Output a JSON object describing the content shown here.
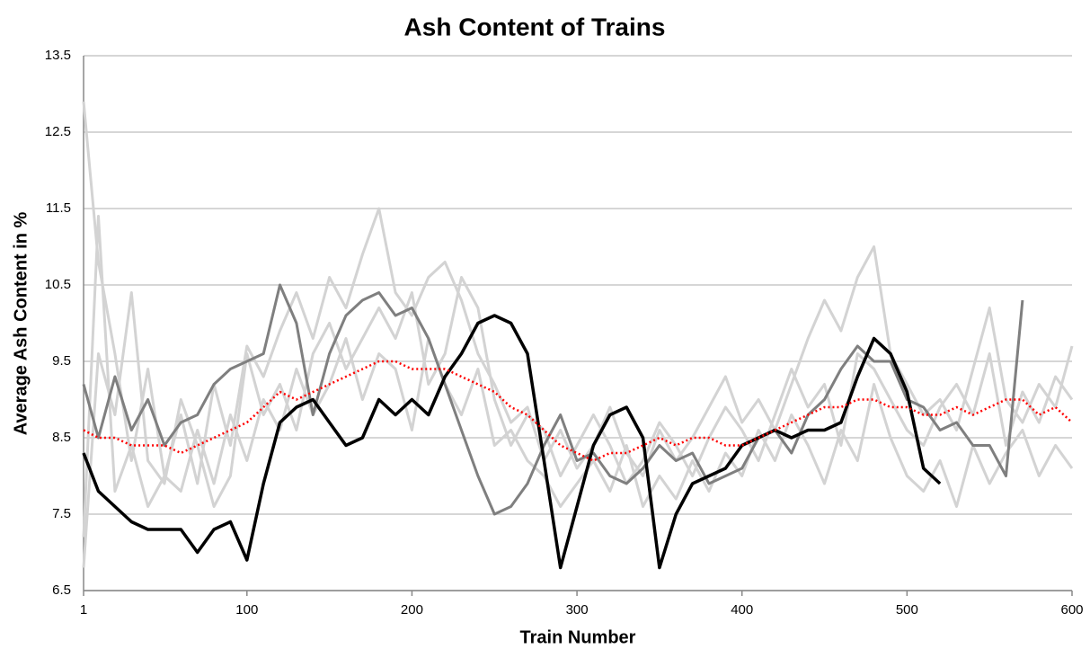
{
  "chart_data": {
    "type": "line",
    "title": "Ash Content of Trains",
    "x_label": "Train Number",
    "y_label": "Average Ash Content in %",
    "x": [
      1,
      10,
      20,
      30,
      40,
      50,
      60,
      70,
      80,
      90,
      100,
      110,
      120,
      130,
      140,
      150,
      160,
      170,
      180,
      190,
      200,
      210,
      220,
      230,
      240,
      250,
      260,
      270,
      280,
      290,
      300,
      310,
      320,
      330,
      340,
      350,
      360,
      370,
      380,
      390,
      400,
      410,
      420,
      430,
      440,
      450,
      460,
      470,
      480,
      490,
      500,
      510,
      520,
      530,
      540,
      550,
      560,
      570,
      580,
      590,
      600
    ],
    "xlim": [
      1,
      600
    ],
    "xticks": [
      1,
      100,
      200,
      300,
      400,
      500,
      600
    ],
    "ylim": [
      6.5,
      13.5
    ],
    "yticks": [
      6.5,
      7.5,
      8.5,
      9.5,
      10.5,
      11.5,
      12.5,
      13.5
    ],
    "grid": true,
    "series": [
      {
        "color": "#d3d3d3",
        "dash": "solid",
        "width": 3,
        "values": [
          12.9,
          10.8,
          9.6,
          8.2,
          9.4,
          8.0,
          8.8,
          7.9,
          9.2,
          8.4,
          9.7,
          9.3,
          9.9,
          10.4,
          9.8,
          10.6,
          10.2,
          10.9,
          11.5,
          10.4,
          10.1,
          10.6,
          10.8,
          10.3,
          9.6,
          9.2,
          8.7,
          8.9,
          8.2,
          8.6,
          8.1,
          8.4,
          8.9,
          8.3,
          8.0,
          8.6,
          8.2,
          8.5,
          8.9,
          9.3,
          8.7,
          9.0,
          8.6,
          9.2,
          9.8,
          10.3,
          9.9,
          10.6,
          11.0,
          9.6,
          9.2,
          8.8,
          9.0,
          8.6,
          9.4,
          10.2,
          9.0,
          8.7,
          9.2,
          8.9,
          9.7
        ]
      },
      {
        "color": "#d3d3d3",
        "dash": "solid",
        "width": 3,
        "values": [
          7.2,
          11.4,
          7.8,
          8.4,
          7.6,
          8.0,
          7.8,
          8.6,
          7.9,
          8.8,
          8.2,
          9.0,
          8.6,
          9.4,
          8.8,
          9.2,
          9.8,
          9.0,
          9.6,
          9.4,
          8.6,
          9.8,
          9.2,
          8.8,
          9.4,
          8.4,
          8.6,
          8.2,
          8.0,
          7.6,
          7.9,
          8.2,
          7.8,
          8.4,
          7.6,
          8.0,
          7.7,
          8.2,
          7.8,
          8.3,
          8.0,
          8.6,
          8.2,
          8.8,
          8.4,
          7.9,
          8.6,
          8.2,
          9.2,
          8.5,
          8.0,
          7.8,
          8.2,
          7.6,
          8.4,
          7.9,
          8.3,
          8.6,
          8.0,
          8.4,
          8.1
        ]
      },
      {
        "color": "#d3d3d3",
        "dash": "solid",
        "width": 3,
        "values": [
          6.8,
          9.6,
          8.8,
          10.4,
          8.2,
          7.9,
          9.0,
          8.4,
          7.6,
          8.0,
          9.6,
          8.8,
          9.2,
          8.6,
          9.6,
          10.0,
          9.4,
          9.8,
          10.2,
          9.8,
          10.4,
          9.2,
          9.6,
          10.6,
          10.2,
          9.0,
          8.4,
          8.8,
          8.6,
          8.0,
          8.4,
          8.8,
          8.4,
          7.9,
          8.2,
          8.7,
          8.4,
          8.0,
          8.5,
          8.9,
          8.6,
          8.2,
          8.8,
          9.4,
          8.9,
          9.2,
          8.4,
          9.6,
          9.4,
          9.0,
          8.6,
          8.4,
          8.9,
          9.2,
          8.8,
          9.6,
          8.4,
          9.1,
          8.7,
          9.3,
          9.0
        ]
      },
      {
        "color": "#7f7f7f",
        "dash": "solid",
        "width": 3,
        "values": [
          9.2,
          8.5,
          9.3,
          8.6,
          9.0,
          8.4,
          8.7,
          8.8,
          9.2,
          9.4,
          9.5,
          9.6,
          10.5,
          10.0,
          8.8,
          9.6,
          10.1,
          10.3,
          10.4,
          10.1,
          10.2,
          9.8,
          9.2,
          8.6,
          8.0,
          7.5,
          7.6,
          7.9,
          8.4,
          8.8,
          8.2,
          8.3,
          8.0,
          7.9,
          8.1,
          8.4,
          8.2,
          8.3,
          7.9,
          8.0,
          8.1,
          8.5,
          8.6,
          8.3,
          8.8,
          9.0,
          9.4,
          9.7,
          9.5,
          9.5,
          9.0,
          8.9,
          8.6,
          8.7,
          8.4,
          8.4,
          8.0,
          10.3,
          null,
          null,
          null
        ]
      },
      {
        "color": "#000000",
        "dash": "solid",
        "width": 3.5,
        "values": [
          8.3,
          7.8,
          7.6,
          7.4,
          7.3,
          7.3,
          7.3,
          7.0,
          7.3,
          7.4,
          6.9,
          7.9,
          8.7,
          8.9,
          9.0,
          8.7,
          8.4,
          8.5,
          9.0,
          8.8,
          9.0,
          8.8,
          9.3,
          9.6,
          10.0,
          10.1,
          10.0,
          9.6,
          8.2,
          6.8,
          7.6,
          8.4,
          8.8,
          8.9,
          8.5,
          6.8,
          7.5,
          7.9,
          8.0,
          8.1,
          8.4,
          8.5,
          8.6,
          8.5,
          8.6,
          8.6,
          8.7,
          9.3,
          9.8,
          9.6,
          9.1,
          8.1,
          7.9,
          null,
          null,
          null,
          null,
          null,
          null,
          null,
          null
        ]
      },
      {
        "color": "#ff0000",
        "dash": "dotted",
        "width": 2.5,
        "values": [
          8.6,
          8.5,
          8.5,
          8.4,
          8.4,
          8.4,
          8.3,
          8.4,
          8.5,
          8.6,
          8.7,
          8.9,
          9.1,
          9.0,
          9.1,
          9.2,
          9.3,
          9.4,
          9.5,
          9.5,
          9.4,
          9.4,
          9.4,
          9.3,
          9.2,
          9.1,
          8.9,
          8.8,
          8.6,
          8.4,
          8.3,
          8.2,
          8.3,
          8.3,
          8.4,
          8.5,
          8.4,
          8.5,
          8.5,
          8.4,
          8.4,
          8.5,
          8.6,
          8.7,
          8.8,
          8.9,
          8.9,
          9.0,
          9.0,
          8.9,
          8.9,
          8.8,
          8.8,
          8.9,
          8.8,
          8.9,
          9.0,
          9.0,
          8.8,
          8.9,
          8.7
        ]
      }
    ]
  }
}
